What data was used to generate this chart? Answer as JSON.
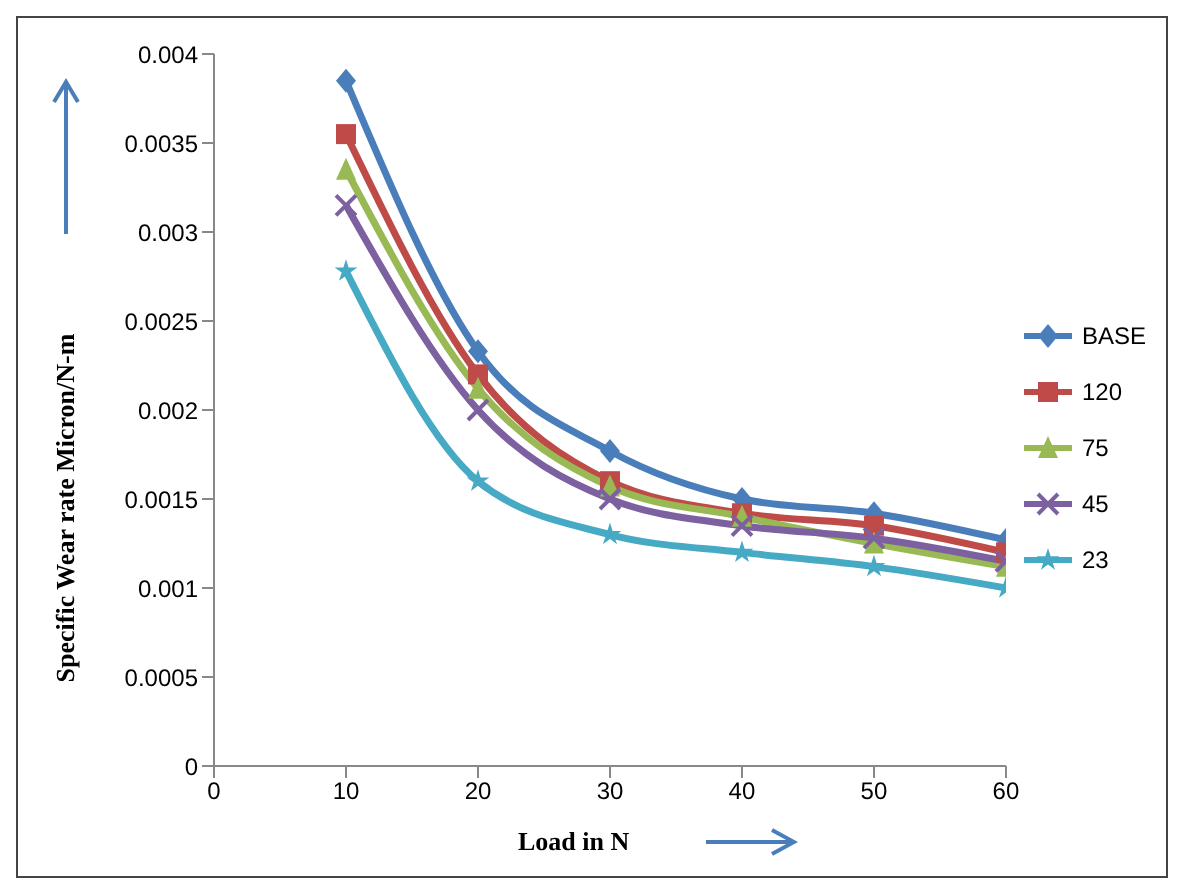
{
  "chart_data": {
    "type": "line",
    "xlabel": "Load in N",
    "ylabel": "Specific Wear rate Micron/N-m",
    "x": [
      10,
      20,
      30,
      40,
      50,
      60
    ],
    "xlim": [
      0,
      60
    ],
    "xticks": [
      0,
      10,
      20,
      30,
      40,
      50,
      60
    ],
    "ylim": [
      0,
      0.004
    ],
    "yticks": [
      0,
      0.0005,
      0.001,
      0.0015,
      0.002,
      0.0025,
      0.003,
      0.0035,
      0.004
    ],
    "grid": false,
    "legend": "right",
    "series": [
      {
        "name": "BASE",
        "color": "#4a7ebb",
        "marker": "diamond",
        "values": [
          0.00385,
          0.00233,
          0.00177,
          0.0015,
          0.00142,
          0.00127
        ]
      },
      {
        "name": "120",
        "color": "#be4b48",
        "marker": "square",
        "values": [
          0.00355,
          0.0022,
          0.0016,
          0.00142,
          0.00135,
          0.0012
        ]
      },
      {
        "name": "75",
        "color": "#98b954",
        "marker": "triangle",
        "values": [
          0.00335,
          0.00212,
          0.00157,
          0.0014,
          0.00125,
          0.00112
        ]
      },
      {
        "name": "45",
        "color": "#7d60a0",
        "marker": "cross",
        "values": [
          0.00315,
          0.002,
          0.0015,
          0.00135,
          0.00128,
          0.00115
        ]
      },
      {
        "name": "23",
        "color": "#46aac5",
        "marker": "star",
        "values": [
          0.00278,
          0.0016,
          0.0013,
          0.0012,
          0.00112,
          0.001
        ]
      }
    ]
  }
}
